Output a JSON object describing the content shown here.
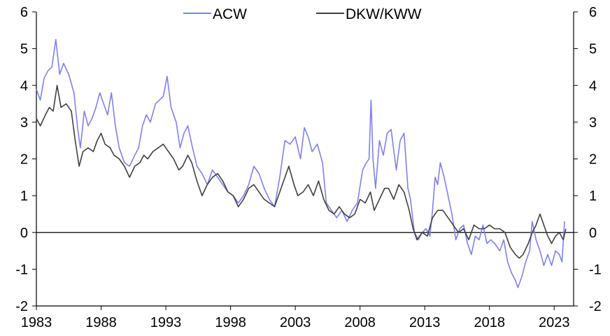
{
  "chart_data": {
    "type": "line",
    "title": "",
    "xlabel": "",
    "ylabel": "",
    "xlim": [
      1983,
      2024.5
    ],
    "ylim": [
      -2,
      6
    ],
    "x_ticks": [
      1983,
      1988,
      1993,
      1998,
      2003,
      2008,
      2013,
      2018,
      2023
    ],
    "x_tick_labels": [
      "1983",
      "1988",
      "1993",
      "1998",
      "2003",
      "2008",
      "2013",
      "2018",
      "2023"
    ],
    "y_ticks": [
      -2,
      -1,
      0,
      1,
      2,
      3,
      4,
      5,
      6
    ],
    "y_tick_labels": [
      "-2",
      "-1",
      "0",
      "1",
      "2",
      "3",
      "4",
      "5",
      "6"
    ],
    "y_axis_sides": [
      "left",
      "right"
    ],
    "zero_line": true,
    "grid": false,
    "legend_placement": "top-center",
    "series": [
      {
        "name": "ACW",
        "color": "#8080ee",
        "points": [
          [
            1983.0,
            3.9
          ],
          [
            1983.3,
            3.6
          ],
          [
            1983.6,
            4.2
          ],
          [
            1983.9,
            4.4
          ],
          [
            1984.2,
            4.5
          ],
          [
            1984.5,
            5.25
          ],
          [
            1984.8,
            4.3
          ],
          [
            1985.1,
            4.6
          ],
          [
            1985.5,
            4.3
          ],
          [
            1985.9,
            3.8
          ],
          [
            1986.2,
            2.8
          ],
          [
            1986.4,
            2.3
          ],
          [
            1986.7,
            3.3
          ],
          [
            1987.0,
            2.9
          ],
          [
            1987.3,
            3.1
          ],
          [
            1987.6,
            3.4
          ],
          [
            1987.9,
            3.8
          ],
          [
            1988.2,
            3.5
          ],
          [
            1988.5,
            3.2
          ],
          [
            1988.8,
            3.8
          ],
          [
            1989.1,
            2.9
          ],
          [
            1989.4,
            2.3
          ],
          [
            1989.8,
            1.9
          ],
          [
            1990.2,
            1.8
          ],
          [
            1990.6,
            2.1
          ],
          [
            1990.9,
            2.3
          ],
          [
            1991.2,
            2.9
          ],
          [
            1991.5,
            3.2
          ],
          [
            1991.8,
            3.0
          ],
          [
            1992.2,
            3.5
          ],
          [
            1992.5,
            3.6
          ],
          [
            1992.8,
            3.7
          ],
          [
            1993.1,
            4.25
          ],
          [
            1993.4,
            3.4
          ],
          [
            1993.8,
            3.0
          ],
          [
            1994.1,
            2.3
          ],
          [
            1994.4,
            2.7
          ],
          [
            1994.7,
            2.9
          ],
          [
            1995.0,
            2.4
          ],
          [
            1995.4,
            1.8
          ],
          [
            1995.8,
            1.6
          ],
          [
            1996.2,
            1.3
          ],
          [
            1996.6,
            1.7
          ],
          [
            1997.0,
            1.5
          ],
          [
            1997.4,
            1.3
          ],
          [
            1997.8,
            1.1
          ],
          [
            1998.2,
            1.0
          ],
          [
            1998.6,
            0.8
          ],
          [
            1999.0,
            1.0
          ],
          [
            1999.4,
            1.3
          ],
          [
            1999.8,
            1.8
          ],
          [
            2000.2,
            1.6
          ],
          [
            2000.6,
            1.2
          ],
          [
            2001.0,
            0.9
          ],
          [
            2001.4,
            0.7
          ],
          [
            2001.8,
            1.5
          ],
          [
            2002.2,
            2.5
          ],
          [
            2002.6,
            2.4
          ],
          [
            2003.0,
            2.6
          ],
          [
            2003.4,
            2.0
          ],
          [
            2003.7,
            2.85
          ],
          [
            2004.0,
            2.6
          ],
          [
            2004.3,
            2.2
          ],
          [
            2004.7,
            2.4
          ],
          [
            2005.1,
            1.9
          ],
          [
            2005.4,
            0.8
          ],
          [
            2005.8,
            0.6
          ],
          [
            2006.2,
            0.4
          ],
          [
            2006.6,
            0.6
          ],
          [
            2007.0,
            0.3
          ],
          [
            2007.4,
            0.6
          ],
          [
            2007.8,
            0.8
          ],
          [
            2008.2,
            1.7
          ],
          [
            2008.5,
            1.9
          ],
          [
            2008.7,
            2.0
          ],
          [
            2008.85,
            3.6
          ],
          [
            2009.0,
            2.0
          ],
          [
            2009.2,
            1.2
          ],
          [
            2009.5,
            2.5
          ],
          [
            2009.8,
            2.1
          ],
          [
            2010.1,
            2.7
          ],
          [
            2010.4,
            2.8
          ],
          [
            2010.8,
            1.7
          ],
          [
            2011.1,
            2.5
          ],
          [
            2011.4,
            2.7
          ],
          [
            2011.7,
            1.2
          ],
          [
            2011.9,
            0.9
          ],
          [
            2012.2,
            0.0
          ],
          [
            2012.5,
            -0.2
          ],
          [
            2012.8,
            0.0
          ],
          [
            2013.1,
            0.1
          ],
          [
            2013.4,
            -0.1
          ],
          [
            2013.6,
            0.6
          ],
          [
            2013.8,
            1.5
          ],
          [
            2014.0,
            1.3
          ],
          [
            2014.2,
            1.9
          ],
          [
            2014.5,
            1.5
          ],
          [
            2014.8,
            1.0
          ],
          [
            2015.1,
            0.5
          ],
          [
            2015.4,
            -0.2
          ],
          [
            2015.7,
            0.1
          ],
          [
            2016.0,
            0.2
          ],
          [
            2016.3,
            -0.3
          ],
          [
            2016.6,
            -0.6
          ],
          [
            2016.9,
            -0.1
          ],
          [
            2017.2,
            -0.2
          ],
          [
            2017.5,
            0.2
          ],
          [
            2017.8,
            -0.3
          ],
          [
            2018.1,
            -0.2
          ],
          [
            2018.4,
            -0.3
          ],
          [
            2018.8,
            -0.5
          ],
          [
            2019.1,
            -0.2
          ],
          [
            2019.4,
            -0.8
          ],
          [
            2019.7,
            -1.1
          ],
          [
            2020.0,
            -1.3
          ],
          [
            2020.2,
            -1.5
          ],
          [
            2020.5,
            -1.2
          ],
          [
            2020.8,
            -0.8
          ],
          [
            2021.1,
            -0.5
          ],
          [
            2021.3,
            0.3
          ],
          [
            2021.6,
            -0.2
          ],
          [
            2021.9,
            -0.5
          ],
          [
            2022.2,
            -0.9
          ],
          [
            2022.5,
            -0.6
          ],
          [
            2022.8,
            -0.9
          ],
          [
            2023.1,
            -0.5
          ],
          [
            2023.4,
            -0.6
          ],
          [
            2023.6,
            -0.8
          ],
          [
            2023.8,
            0.3
          ]
        ]
      },
      {
        "name": "DKW/KWW",
        "color": "#404040",
        "points": [
          [
            1983.0,
            3.1
          ],
          [
            1983.3,
            2.9
          ],
          [
            1983.7,
            3.2
          ],
          [
            1984.0,
            3.4
          ],
          [
            1984.3,
            3.3
          ],
          [
            1984.6,
            4.0
          ],
          [
            1984.9,
            3.4
          ],
          [
            1985.3,
            3.5
          ],
          [
            1985.7,
            3.3
          ],
          [
            1986.0,
            2.5
          ],
          [
            1986.3,
            1.8
          ],
          [
            1986.6,
            2.2
          ],
          [
            1987.0,
            2.3
          ],
          [
            1987.4,
            2.2
          ],
          [
            1987.7,
            2.5
          ],
          [
            1988.0,
            2.7
          ],
          [
            1988.3,
            2.4
          ],
          [
            1988.7,
            2.3
          ],
          [
            1989.0,
            2.1
          ],
          [
            1989.4,
            2.0
          ],
          [
            1989.8,
            1.8
          ],
          [
            1990.2,
            1.5
          ],
          [
            1990.6,
            1.8
          ],
          [
            1991.0,
            1.9
          ],
          [
            1991.3,
            2.1
          ],
          [
            1991.6,
            2.0
          ],
          [
            1992.0,
            2.2
          ],
          [
            1992.4,
            2.3
          ],
          [
            1992.8,
            2.4
          ],
          [
            1993.2,
            2.2
          ],
          [
            1993.6,
            2.0
          ],
          [
            1994.0,
            1.7
          ],
          [
            1994.3,
            1.8
          ],
          [
            1994.7,
            2.1
          ],
          [
            1995.0,
            1.9
          ],
          [
            1995.4,
            1.4
          ],
          [
            1995.8,
            1.0
          ],
          [
            1996.2,
            1.3
          ],
          [
            1996.6,
            1.5
          ],
          [
            1997.0,
            1.6
          ],
          [
            1997.4,
            1.4
          ],
          [
            1997.8,
            1.1
          ],
          [
            1998.2,
            1.0
          ],
          [
            1998.6,
            0.7
          ],
          [
            1999.0,
            0.9
          ],
          [
            1999.4,
            1.2
          ],
          [
            1999.8,
            1.3
          ],
          [
            2000.2,
            1.1
          ],
          [
            2000.6,
            0.9
          ],
          [
            2001.0,
            0.8
          ],
          [
            2001.4,
            0.7
          ],
          [
            2001.8,
            1.1
          ],
          [
            2002.2,
            1.5
          ],
          [
            2002.5,
            1.8
          ],
          [
            2002.9,
            1.3
          ],
          [
            2003.2,
            1.0
          ],
          [
            2003.6,
            1.1
          ],
          [
            2004.0,
            1.3
          ],
          [
            2004.4,
            1.0
          ],
          [
            2004.8,
            1.4
          ],
          [
            2005.2,
            0.9
          ],
          [
            2005.6,
            0.6
          ],
          [
            2006.0,
            0.5
          ],
          [
            2006.4,
            0.7
          ],
          [
            2006.8,
            0.5
          ],
          [
            2007.2,
            0.4
          ],
          [
            2007.6,
            0.5
          ],
          [
            2008.0,
            0.9
          ],
          [
            2008.4,
            0.8
          ],
          [
            2008.8,
            1.1
          ],
          [
            2009.1,
            0.6
          ],
          [
            2009.5,
            0.9
          ],
          [
            2009.9,
            1.2
          ],
          [
            2010.2,
            1.2
          ],
          [
            2010.6,
            0.9
          ],
          [
            2011.0,
            1.3
          ],
          [
            2011.4,
            1.1
          ],
          [
            2011.8,
            0.6
          ],
          [
            2012.1,
            0.1
          ],
          [
            2012.4,
            -0.2
          ],
          [
            2012.8,
            0.0
          ],
          [
            2013.2,
            -0.1
          ],
          [
            2013.6,
            0.4
          ],
          [
            2014.0,
            0.6
          ],
          [
            2014.4,
            0.6
          ],
          [
            2014.8,
            0.4
          ],
          [
            2015.2,
            0.2
          ],
          [
            2015.6,
            0.0
          ],
          [
            2016.0,
            0.1
          ],
          [
            2016.4,
            -0.2
          ],
          [
            2016.8,
            0.2
          ],
          [
            2017.2,
            0.1
          ],
          [
            2017.6,
            0.1
          ],
          [
            2018.0,
            0.2
          ],
          [
            2018.4,
            0.1
          ],
          [
            2018.8,
            0.1
          ],
          [
            2019.2,
            0.0
          ],
          [
            2019.6,
            -0.4
          ],
          [
            2020.0,
            -0.6
          ],
          [
            2020.3,
            -0.7
          ],
          [
            2020.6,
            -0.6
          ],
          [
            2021.0,
            -0.3
          ],
          [
            2021.3,
            0.0
          ],
          [
            2021.6,
            0.2
          ],
          [
            2021.9,
            0.5
          ],
          [
            2022.2,
            0.2
          ],
          [
            2022.5,
            -0.1
          ],
          [
            2022.8,
            -0.3
          ],
          [
            2023.1,
            -0.1
          ],
          [
            2023.4,
            0.0
          ],
          [
            2023.7,
            -0.2
          ],
          [
            2023.9,
            0.1
          ]
        ]
      }
    ]
  }
}
